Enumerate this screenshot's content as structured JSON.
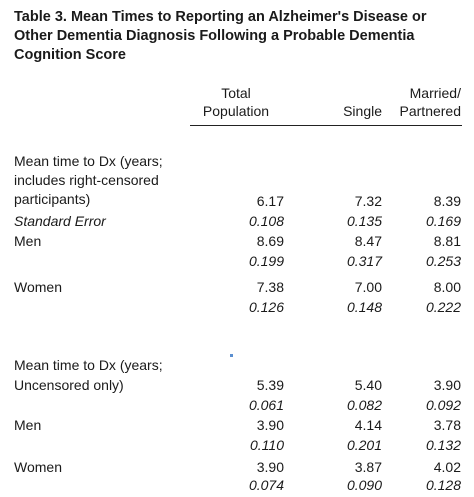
{
  "title": "Table 3. Mean Times to Reporting an Alzheimer's Disease or Other Dementia Diagnosis Following a Probable Dementia Cognition Score",
  "columns": {
    "total": [
      "Total",
      "Population"
    ],
    "single": "Single",
    "married": [
      "Married/",
      "Partnered"
    ]
  },
  "section1": {
    "heading": [
      "Mean time to Dx (years;",
      "includes right-censored",
      "participants)"
    ],
    "mean": [
      "6.17",
      "7.32",
      "8.39"
    ],
    "se_label": "Standard Error",
    "se": [
      "0.108",
      "0.135",
      "0.169"
    ],
    "men_label": "Men",
    "men": [
      "8.69",
      "8.47",
      "8.81"
    ],
    "men_se": [
      "0.199",
      "0.317",
      "0.253"
    ],
    "women_label": "Women",
    "women": [
      "7.38",
      "7.00",
      "8.00"
    ],
    "women_se": [
      "0.126",
      "0.148",
      "0.222"
    ]
  },
  "section2": {
    "heading": [
      "Mean time to Dx (years;",
      "Uncensored only)"
    ],
    "mean": [
      "5.39",
      "5.40",
      "3.90"
    ],
    "se": [
      "0.061",
      "0.082",
      "0.092"
    ],
    "men_label": "Men",
    "men": [
      "3.90",
      "4.14",
      "3.78"
    ],
    "men_se": [
      "0.110",
      "0.201",
      "0.132"
    ],
    "women_label": "Women",
    "women": [
      "3.90",
      "3.87",
      "4.02"
    ],
    "women_se": [
      "0.074",
      "0.090",
      "0.128"
    ]
  },
  "colors": {
    "text": "#1a1a1a",
    "rule": "#222222",
    "mark": "#5b8fd0"
  }
}
